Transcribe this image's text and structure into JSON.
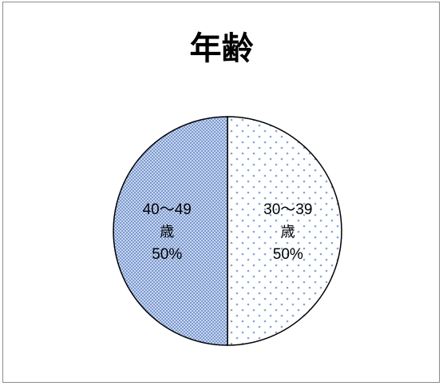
{
  "chart_data": {
    "type": "pie",
    "title": "年齢",
    "slices": [
      {
        "label_line1": "30〜39",
        "label_line2": "歳",
        "percent_label": "50%",
        "value": 50,
        "pattern": "dots",
        "color": "#ffffff"
      },
      {
        "label_line1": "40〜49",
        "label_line2": "歳",
        "percent_label": "50%",
        "value": 50,
        "pattern": "checker",
        "color": "#a9bfe6"
      }
    ],
    "start_angle_deg": 0,
    "legend": "none"
  }
}
